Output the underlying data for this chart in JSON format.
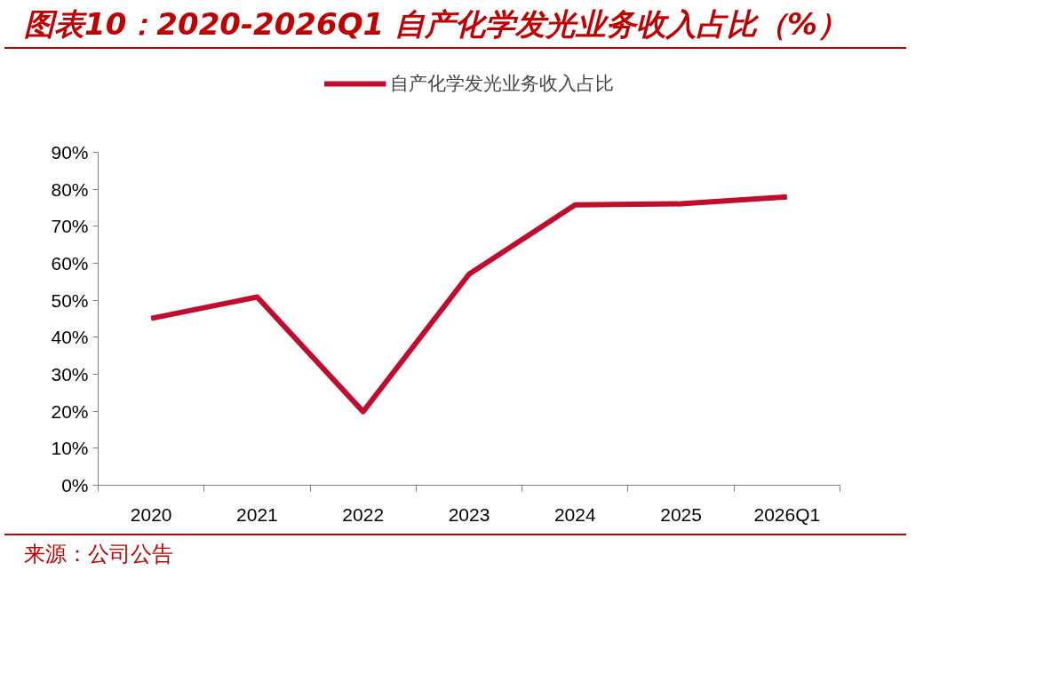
{
  "chart_data": {
    "type": "line",
    "title": "图表10：2020-2026Q1 自产化学发光业务收入占比（%）",
    "categories": [
      "2020",
      "2021",
      "2022",
      "2023",
      "2024",
      "2025",
      "2026Q1"
    ],
    "series": [
      {
        "name": "自产化学发光业务收入占比",
        "color": "#c00d2e",
        "values": [
          45.1,
          50.9,
          19.9,
          57.1,
          75.8,
          76.1,
          78.0
        ]
      }
    ],
    "ylim": [
      0,
      90
    ],
    "yticks": [
      {
        "value": 0,
        "label": "0%"
      },
      {
        "value": 10,
        "label": "10%"
      },
      {
        "value": 20,
        "label": "20%"
      },
      {
        "value": 30,
        "label": "30%"
      },
      {
        "value": 40,
        "label": "40%"
      },
      {
        "value": 50,
        "label": "50%"
      },
      {
        "value": 60,
        "label": "60%"
      },
      {
        "value": 70,
        "label": "70%"
      },
      {
        "value": 80,
        "label": "80%"
      },
      {
        "value": 90,
        "label": "90%"
      }
    ],
    "grid": false,
    "legend": "top",
    "marker": "none",
    "line_style": "solid",
    "annotations": [
      "来源：公司公告"
    ]
  }
}
